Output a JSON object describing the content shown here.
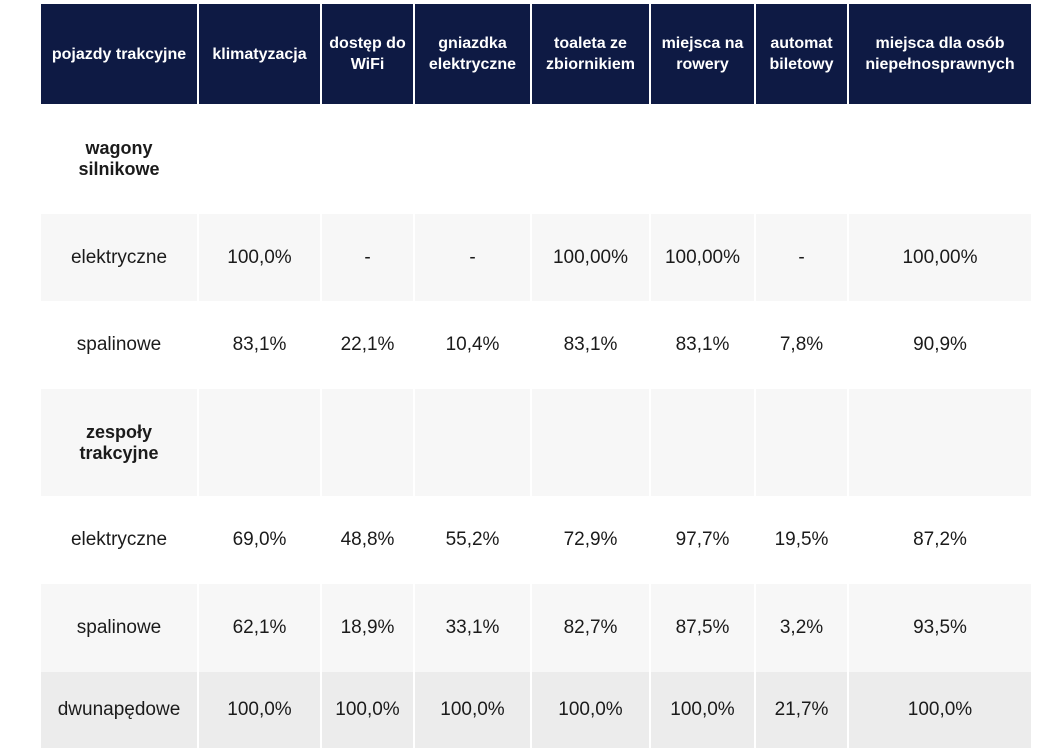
{
  "table": {
    "headers": [
      "pojazdy trakcyjne",
      "klimatyzacja",
      "dostęp do WiFi",
      "gniazdka elektryczne",
      "toaleta ze zbiornikiem",
      "miejsca na rowery",
      "automat biletowy",
      "miejsca dla osób niepełnosprawnych"
    ],
    "rows": [
      {
        "type": "group",
        "shade": "white",
        "cells": [
          "wagony silnikowe",
          "",
          "",
          "",
          "",
          "",
          "",
          ""
        ]
      },
      {
        "type": "data",
        "shade": "light",
        "cells": [
          "elektryczne",
          "100,0%",
          "-",
          "-",
          "100,00%",
          "100,00%",
          "-",
          "100,00%"
        ]
      },
      {
        "type": "data",
        "shade": "white",
        "cells": [
          "spalinowe",
          "83,1%",
          "22,1%",
          "10,4%",
          "83,1%",
          "83,1%",
          "7,8%",
          "90,9%"
        ]
      },
      {
        "type": "group",
        "shade": "light",
        "cells": [
          "zespoły trakcyjne",
          "",
          "",
          "",
          "",
          "",
          "",
          ""
        ]
      },
      {
        "type": "data",
        "shade": "white",
        "cells": [
          "elektryczne",
          "69,0%",
          "48,8%",
          "55,2%",
          "72,9%",
          "97,7%",
          "19,5%",
          "87,2%"
        ]
      },
      {
        "type": "data",
        "shade": "light",
        "cells": [
          "spalinowe",
          "62,1%",
          "18,9%",
          "33,1%",
          "82,7%",
          "87,5%",
          "3,2%",
          "93,5%"
        ]
      },
      {
        "type": "data",
        "shade": "gray",
        "cells": [
          "dwunapędowe",
          "100,0%",
          "100,0%",
          "100,0%",
          "100,0%",
          "100,0%",
          "21,7%",
          "100,0%"
        ]
      }
    ]
  },
  "colors": {
    "header_bg": "#0e1a44",
    "header_text": "#ffffff",
    "row_light": "#f7f7f7",
    "row_gray": "#ececec"
  }
}
